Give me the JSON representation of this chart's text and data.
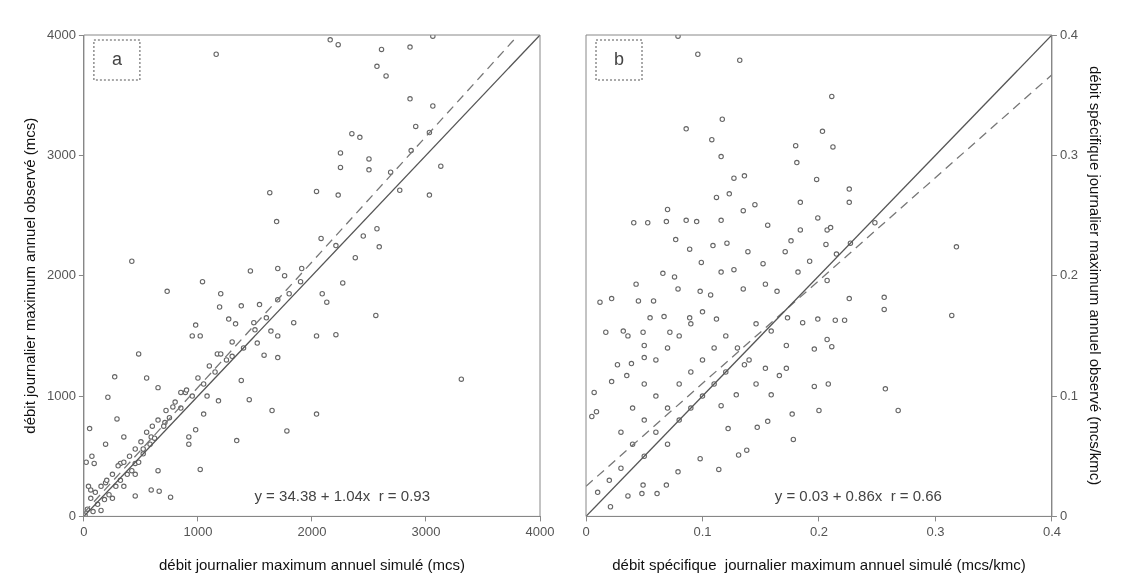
{
  "chart_data": [
    {
      "type": "scatter",
      "xlabel": "débit journalier maximum annuel simulé (mcs)",
      "ylabel": "débit journalier maximum annuel observé (mcs)",
      "xlim": [
        0,
        4000
      ],
      "ylim": [
        0,
        4000
      ],
      "xticks": [
        0,
        1000,
        2000,
        3000,
        4000
      ],
      "yticks": [
        0,
        1000,
        2000,
        3000,
        4000
      ],
      "marker": "circle",
      "annotations": [
        "a",
        "y = 34.38 + 1.04x  r = 0.93"
      ],
      "series": [
        {
          "color": "#666666",
          "x": [
            1160,
            2160,
            2230,
            2610,
            2860,
            3060,
            2570,
            2650,
            2860,
            3060,
            2910,
            2350,
            2420,
            2250,
            2500,
            3030,
            2500,
            2250,
            2690,
            2870,
            3130,
            3030,
            2770,
            1630,
            2040,
            2230,
            1690,
            2080,
            2450,
            2570,
            2590,
            2380,
            2210,
            420,
            1460,
            1700,
            1910,
            1760,
            2270,
            1040,
            730,
            2090,
            2130,
            2560,
            2040,
            2210,
            1840,
            1200,
            1190,
            1380,
            1540,
            980,
            1270,
            1330,
            1020,
            950,
            1700,
            1640,
            3310,
            1700,
            1580,
            1520,
            1490,
            1300,
            1170,
            1380,
            1450,
            1650,
            2040,
            1780,
            1340,
            1020,
            760,
            450,
            660,
            590,
            270,
            210,
            50,
            480,
            550,
            650,
            780,
            890,
            850,
            1080,
            1180,
            1050,
            980,
            920,
            920,
            710,
            190,
            290,
            350,
            520,
            590,
            450,
            650,
            90,
            60,
            190,
            320,
            30,
            60,
            80,
            100,
            120,
            150,
            180,
            200,
            220,
            250,
            280,
            300,
            320,
            350,
            380,
            400,
            420,
            450,
            480,
            500,
            520,
            550,
            580,
            600,
            620,
            650,
            700,
            720,
            750,
            800,
            850,
            900,
            950,
            1000,
            1050,
            1100,
            1150,
            1200,
            1250,
            1300,
            1400,
            1500,
            1600,
            1700,
            1800,
            1900,
            10,
            40,
            20,
            70,
            150,
            250,
            350,
            450
          ],
          "values": [
            3840,
            3960,
            3920,
            3880,
            3900,
            3990,
            3740,
            3660,
            3470,
            3410,
            3240,
            3180,
            3150,
            3020,
            2970,
            3190,
            2880,
            2900,
            2860,
            3040,
            2910,
            2670,
            2710,
            2690,
            2700,
            2670,
            2450,
            2310,
            2330,
            2390,
            2240,
            2150,
            2250,
            2120,
            2040,
            2060,
            2060,
            2000,
            1940,
            1950,
            1870,
            1850,
            1780,
            1670,
            1500,
            1510,
            1610,
            1850,
            1740,
            1750,
            1760,
            1590,
            1640,
            1600,
            1500,
            1500,
            1500,
            1540,
            1140,
            1320,
            1340,
            1440,
            1610,
            1330,
            1350,
            1130,
            970,
            880,
            850,
            710,
            630,
            390,
            160,
            170,
            210,
            220,
            1160,
            990,
            730,
            1350,
            1150,
            1070,
            910,
            1030,
            1030,
            1000,
            960,
            850,
            720,
            600,
            660,
            780,
            600,
            810,
            660,
            560,
            660,
            440,
            380,
            440,
            220,
            280,
            440,
            60,
            150,
            40,
            200,
            100,
            250,
            140,
            300,
            180,
            350,
            250,
            420,
            300,
            450,
            350,
            500,
            380,
            560,
            450,
            620,
            520,
            700,
            600,
            750,
            650,
            800,
            750,
            880,
            820,
            950,
            900,
            1050,
            1000,
            1150,
            1100,
            1250,
            1200,
            1350,
            1300,
            1450,
            1400,
            1550,
            1650,
            1800,
            1850,
            1950,
            10,
            250,
            450,
            500,
            50,
            150,
            250,
            350
          ]
        },
        {
          "type": "line",
          "marker": "none",
          "color": "#555555",
          "line_style": "solid",
          "x": [
            0,
            4000
          ],
          "values": [
            0,
            4000
          ]
        },
        {
          "type": "line",
          "marker": "none",
          "color": "#777777",
          "line_style": "dashed",
          "x": [
            0,
            3800
          ],
          "values": [
            30,
            3990
          ]
        }
      ]
    },
    {
      "type": "scatter",
      "xlabel": "débit spécifique  journalier maximum annuel simulé (mcs/kmc)",
      "y2label": "débit spécifique journalier maximum annuel observé (mcs/kmc)",
      "xlim": [
        0,
        0.4
      ],
      "y2lim": [
        0,
        0.4
      ],
      "xticks": [
        0,
        0.1,
        0.2,
        0.3,
        0.4
      ],
      "y2ticks": [
        0,
        0.1,
        0.2,
        0.3,
        0.4
      ],
      "marker": "circle",
      "annotations": [
        "b",
        "y = 0.03 + 0.86x  r = 0.66"
      ],
      "series": [
        {
          "color": "#666666",
          "axis": "y2",
          "x": [
            0.079,
            0.096,
            0.132,
            0.211,
            0.086,
            0.117,
            0.108,
            0.116,
            0.203,
            0.212,
            0.18,
            0.181,
            0.127,
            0.136,
            0.198,
            0.226,
            0.226,
            0.112,
            0.123,
            0.184,
            0.145,
            0.135,
            0.07,
            0.041,
            0.053,
            0.086,
            0.069,
            0.095,
            0.116,
            0.156,
            0.184,
            0.199,
            0.207,
            0.21,
            0.248,
            0.318,
            0.227,
            0.206,
            0.215,
            0.192,
            0.176,
            0.171,
            0.089,
            0.077,
            0.109,
            0.121,
            0.139,
            0.099,
            0.116,
            0.127,
            0.152,
            0.066,
            0.076,
            0.043,
            0.079,
            0.098,
            0.012,
            0.022,
            0.045,
            0.058,
            0.107,
            0.135,
            0.154,
            0.164,
            0.226,
            0.256,
            0.256,
            0.314,
            0.207,
            0.182,
            0.222,
            0.214,
            0.199,
            0.186,
            0.173,
            0.055,
            0.067,
            0.089,
            0.112,
            0.017,
            0.032,
            0.049,
            0.036,
            0.072,
            0.146,
            0.159,
            0.207,
            0.211,
            0.172,
            0.196,
            0.05,
            0.027,
            0.039,
            0.05,
            0.022,
            0.035,
            0.007,
            0.009,
            0.005,
            0.196,
            0.208,
            0.257,
            0.268,
            0.2,
            0.178,
            0.177,
            0.156,
            0.147,
            0.138,
            0.131,
            0.114,
            0.098,
            0.079,
            0.061,
            0.048,
            0.036,
            0.021,
            0.069,
            0.049,
            0.166,
            0.154,
            0.172,
            0.136,
            0.146,
            0.129,
            0.159,
            0.116,
            0.122,
            0.03,
            0.04,
            0.05,
            0.05,
            0.06,
            0.06,
            0.07,
            0.07,
            0.08,
            0.08,
            0.09,
            0.09,
            0.1,
            0.1,
            0.11,
            0.11,
            0.12,
            0.04,
            0.05,
            0.06,
            0.07,
            0.08,
            0.09,
            0.1,
            0.03,
            0.02,
            0.01,
            0.13,
            0.14,
            0.12
          ],
          "values": [
            0.399,
            0.384,
            0.379,
            0.349,
            0.322,
            0.33,
            0.313,
            0.299,
            0.32,
            0.307,
            0.308,
            0.294,
            0.281,
            0.283,
            0.28,
            0.272,
            0.261,
            0.265,
            0.268,
            0.261,
            0.259,
            0.254,
            0.255,
            0.244,
            0.244,
            0.246,
            0.245,
            0.245,
            0.246,
            0.242,
            0.238,
            0.248,
            0.238,
            0.24,
            0.244,
            0.224,
            0.227,
            0.226,
            0.218,
            0.212,
            0.229,
            0.22,
            0.222,
            0.23,
            0.225,
            0.227,
            0.22,
            0.211,
            0.203,
            0.205,
            0.21,
            0.202,
            0.199,
            0.193,
            0.189,
            0.187,
            0.178,
            0.181,
            0.179,
            0.179,
            0.184,
            0.189,
            0.193,
            0.187,
            0.181,
            0.182,
            0.172,
            0.167,
            0.196,
            0.203,
            0.163,
            0.163,
            0.164,
            0.161,
            0.165,
            0.165,
            0.166,
            0.165,
            0.164,
            0.153,
            0.154,
            0.153,
            0.15,
            0.153,
            0.16,
            0.154,
            0.147,
            0.141,
            0.142,
            0.139,
            0.142,
            0.126,
            0.127,
            0.132,
            0.112,
            0.117,
            0.103,
            0.087,
            0.083,
            0.108,
            0.11,
            0.106,
            0.088,
            0.088,
            0.064,
            0.085,
            0.079,
            0.074,
            0.055,
            0.051,
            0.039,
            0.048,
            0.037,
            0.019,
            0.019,
            0.017,
            0.008,
            0.026,
            0.026,
            0.117,
            0.123,
            0.123,
            0.126,
            0.11,
            0.101,
            0.101,
            0.092,
            0.073,
            0.04,
            0.06,
            0.05,
            0.08,
            0.07,
            0.1,
            0.06,
            0.09,
            0.08,
            0.11,
            0.09,
            0.12,
            0.1,
            0.13,
            0.11,
            0.14,
            0.12,
            0.09,
            0.11,
            0.13,
            0.14,
            0.15,
            0.16,
            0.17,
            0.07,
            0.03,
            0.02,
            0.14,
            0.13,
            0.15
          ]
        },
        {
          "type": "line",
          "marker": "none",
          "color": "#555555",
          "axis": "y2",
          "line_style": "solid",
          "x": [
            0,
            0.4
          ],
          "values": [
            0,
            0.4
          ]
        },
        {
          "type": "line",
          "marker": "none",
          "color": "#777777",
          "axis": "y2",
          "line_style": "dashed",
          "x": [
            0,
            0.4
          ],
          "values": [
            0.025,
            0.367
          ]
        }
      ]
    }
  ]
}
